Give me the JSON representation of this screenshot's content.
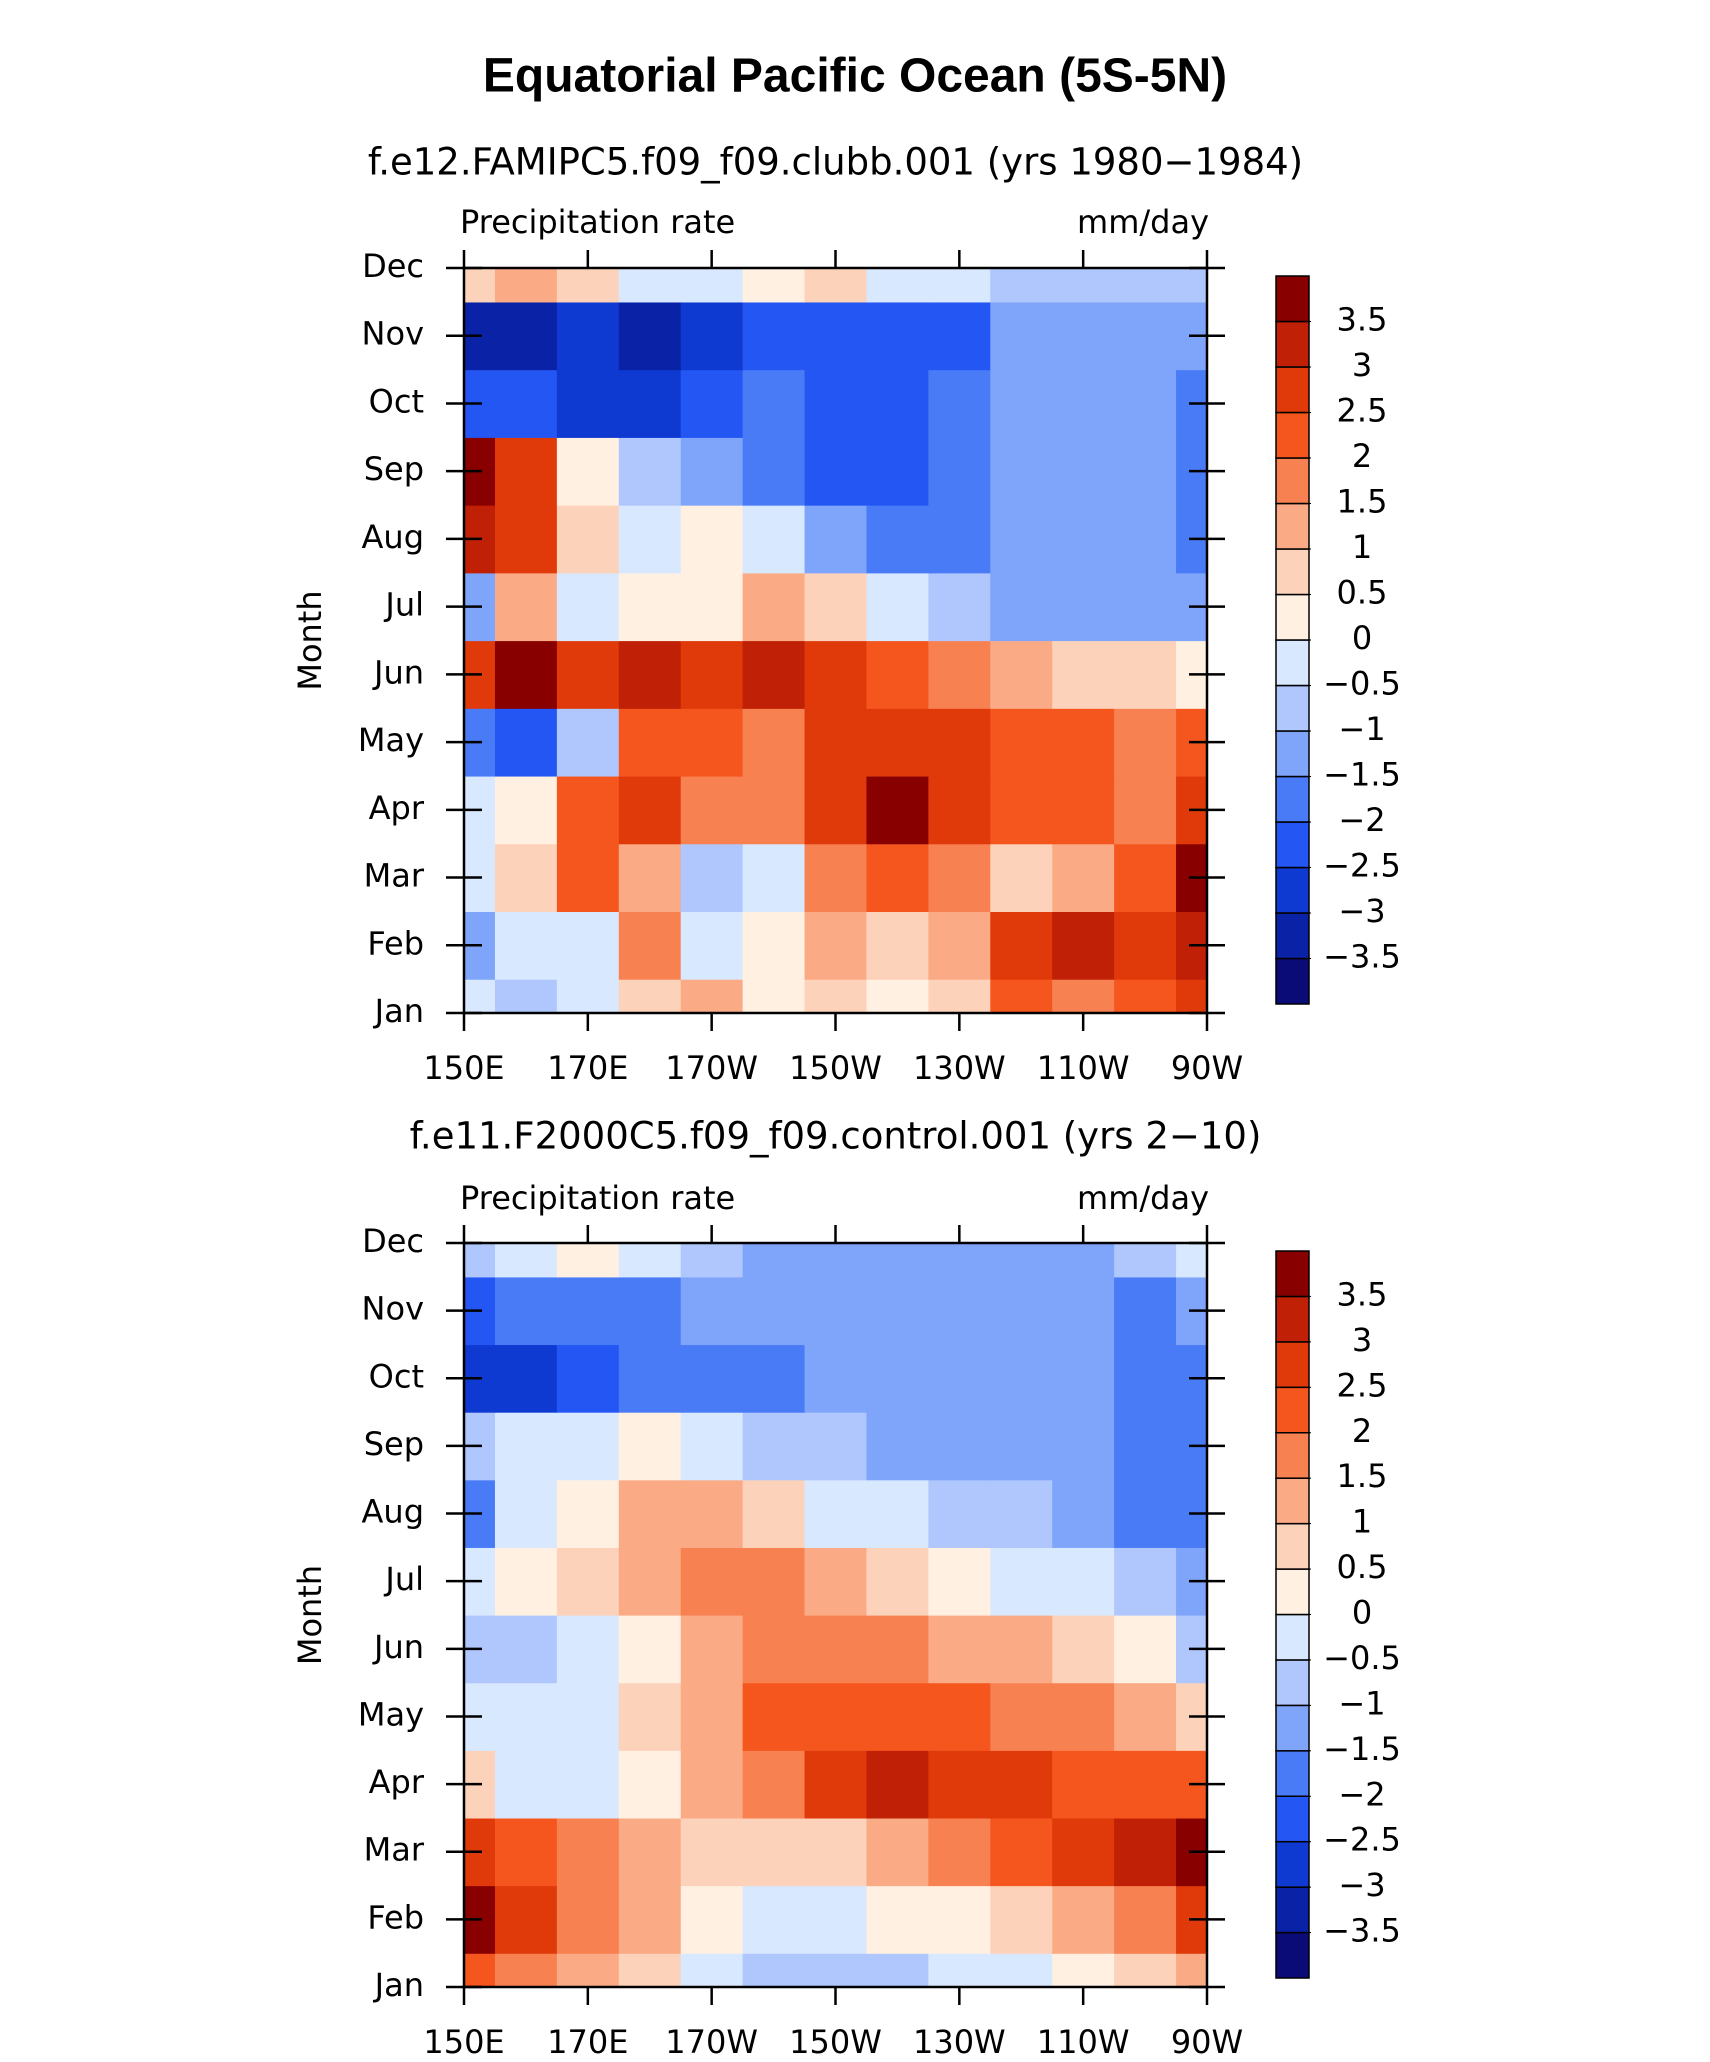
{
  "title": "Equatorial Pacific Ocean (5S-5N)",
  "chart_data": [
    {
      "type": "heatmap",
      "subtitle": "f.e12.FAMIPC5.f09_f09.clubb.001 (yrs 1980−1984)",
      "left_label": "Precipitation rate",
      "right_label": "mm/day",
      "ylabel": "Month",
      "categories": [
        "Jan",
        "Feb",
        "Mar",
        "Apr",
        "May",
        "Jun",
        "Jul",
        "Aug",
        "Sep",
        "Oct",
        "Nov",
        "Dec"
      ],
      "x": [
        150,
        160,
        170,
        180,
        190,
        200,
        210,
        220,
        230,
        240,
        250,
        260,
        270
      ],
      "xlim": [
        150,
        270
      ],
      "xticks": [
        {
          "value": 150,
          "label": "150E"
        },
        {
          "value": 170,
          "label": "170E"
        },
        {
          "value": 190,
          "label": "170W"
        },
        {
          "value": 210,
          "label": "150W"
        },
        {
          "value": 230,
          "label": "130W"
        },
        {
          "value": 250,
          "label": "110W"
        },
        {
          "value": 270,
          "label": "90W"
        }
      ],
      "z": [
        [
          -0.5,
          -1,
          -0.5,
          0.5,
          1,
          0,
          0.5,
          0,
          0.5,
          2,
          1.5,
          2,
          2.5
        ],
        [
          -1.5,
          -0.5,
          -0.5,
          1.5,
          -0.5,
          0,
          1,
          0.5,
          1,
          2.5,
          3,
          2.5,
          3
        ],
        [
          -0.5,
          0.5,
          2,
          1,
          -1,
          -0.5,
          1.5,
          2,
          1.5,
          0.5,
          1,
          2,
          3.5
        ],
        [
          -0.5,
          0,
          2,
          2.5,
          1.5,
          1.5,
          2.5,
          3.5,
          2.5,
          2,
          2,
          1.5,
          2.5
        ],
        [
          -2,
          -2.5,
          -1,
          2,
          2,
          1.5,
          2.5,
          2.5,
          2.5,
          2,
          2,
          1.5,
          2
        ],
        [
          2.5,
          3.5,
          2.5,
          3,
          2.5,
          3,
          2.5,
          2,
          1.5,
          1,
          0.5,
          0.5,
          0
        ],
        [
          -1.5,
          1,
          -0.5,
          0,
          0,
          1,
          0.5,
          -0.5,
          -1,
          -1.5,
          -1.5,
          -1.5,
          -1.5
        ],
        [
          3,
          2.5,
          0.5,
          -0.5,
          0,
          -0.5,
          -1.5,
          -2,
          -2,
          -1.5,
          -1.5,
          -1.5,
          -2
        ],
        [
          3.5,
          2.5,
          0,
          -1,
          -1.5,
          -2,
          -2.5,
          -2.5,
          -2,
          -1.5,
          -1.5,
          -1.5,
          -2
        ],
        [
          -2.5,
          -2.5,
          -3,
          -3,
          -2.5,
          -2,
          -2.5,
          -2.5,
          -2,
          -1.5,
          -1.5,
          -1.5,
          -2
        ],
        [
          -3.5,
          -3.5,
          -3,
          -3.5,
          -3,
          -2.5,
          -2.5,
          -2.5,
          -2.5,
          -1.5,
          -1.5,
          -1.5,
          -1.5
        ],
        [
          0.5,
          1,
          0.5,
          -0.5,
          -0.5,
          0,
          0.5,
          -0.5,
          -0.5,
          -1,
          -1,
          -1,
          -1
        ]
      ],
      "levels": [
        {
          "value": -3.5,
          "label": "−3.5"
        },
        {
          "value": -3,
          "label": "−3"
        },
        {
          "value": -2.5,
          "label": "−2.5"
        },
        {
          "value": -2,
          "label": "−2"
        },
        {
          "value": -1.5,
          "label": "−1.5"
        },
        {
          "value": -1,
          "label": "−1"
        },
        {
          "value": -0.5,
          "label": "−0.5"
        },
        0,
        0.5,
        1,
        1.5,
        2,
        2.5,
        3,
        3.5
      ],
      "colors": [
        "#0b0b78",
        "#0a22a6",
        "#0f3ad2",
        "#2456f4",
        "#4a7bf7",
        "#7fa5fa",
        "#afc7fc",
        "#d8e8fe",
        "#fff0e2",
        "#fdd2ba",
        "#fbaa86",
        "#f88152",
        "#f5561e",
        "#e03a0a",
        "#bf2006",
        "#880000"
      ]
    },
    {
      "type": "heatmap",
      "subtitle": "f.e11.F2000C5.f09_f09.control.001 (yrs 2−10)",
      "left_label": "Precipitation rate",
      "right_label": "mm/day",
      "ylabel": "Month",
      "categories": [
        "Jan",
        "Feb",
        "Mar",
        "Apr",
        "May",
        "Jun",
        "Jul",
        "Aug",
        "Sep",
        "Oct",
        "Nov",
        "Dec"
      ],
      "x": [
        150,
        160,
        170,
        180,
        190,
        200,
        210,
        220,
        230,
        240,
        250,
        260,
        270
      ],
      "xlim": [
        150,
        270
      ],
      "xticks": [
        {
          "value": 150,
          "label": "150E"
        },
        {
          "value": 170,
          "label": "170E"
        },
        {
          "value": 190,
          "label": "170W"
        },
        {
          "value": 210,
          "label": "150W"
        },
        {
          "value": 230,
          "label": "130W"
        },
        {
          "value": 250,
          "label": "110W"
        },
        {
          "value": 270,
          "label": "90W"
        }
      ],
      "z": [
        [
          2,
          1.5,
          1,
          0.5,
          -0.5,
          -1,
          -1,
          -1,
          -0.5,
          -0.5,
          0,
          0.5,
          1
        ],
        [
          3.5,
          2.5,
          1.5,
          1,
          0,
          -0.5,
          -0.5,
          0,
          0,
          0.5,
          1,
          1.5,
          2.5
        ],
        [
          2.5,
          2,
          1.5,
          1,
          0.5,
          0.5,
          0.5,
          1,
          1.5,
          2,
          2.5,
          3,
          3.5
        ],
        [
          0.5,
          -0.5,
          -0.5,
          0,
          1,
          1.5,
          2.5,
          3,
          2.5,
          2.5,
          2,
          2,
          2
        ],
        [
          -0.5,
          -0.5,
          -0.5,
          0.5,
          1,
          2,
          2,
          2,
          2,
          1.5,
          1.5,
          1,
          0.5
        ],
        [
          -1,
          -1,
          -0.5,
          0,
          1,
          1.5,
          1.5,
          1.5,
          1,
          1,
          0.5,
          0,
          -1
        ],
        [
          -0.5,
          0,
          0.5,
          1,
          1.5,
          1.5,
          1,
          0.5,
          0,
          -0.5,
          -0.5,
          -1,
          -1.5
        ],
        [
          -2,
          -0.5,
          0,
          1,
          1,
          0.5,
          -0.5,
          -0.5,
          -1,
          -1,
          -1.5,
          -2,
          -2
        ],
        [
          -1,
          -0.5,
          -0.5,
          0,
          -0.5,
          -1,
          -1,
          -1.5,
          -1.5,
          -1.5,
          -1.5,
          -2,
          -2
        ],
        [
          -3,
          -3,
          -2.5,
          -2,
          -2,
          -2,
          -1.5,
          -1.5,
          -1.5,
          -1.5,
          -1.5,
          -2,
          -2
        ],
        [
          -2.5,
          -2,
          -2,
          -2,
          -1.5,
          -1.5,
          -1.5,
          -1.5,
          -1.5,
          -1.5,
          -1.5,
          -2,
          -1.5
        ],
        [
          -1,
          -0.5,
          0,
          -0.5,
          -1,
          -1.5,
          -1.5,
          -1.5,
          -1.5,
          -1.5,
          -1.5,
          -1,
          -0.5
        ]
      ],
      "levels": [
        {
          "value": -3.5,
          "label": "−3.5"
        },
        {
          "value": -3,
          "label": "−3"
        },
        {
          "value": -2.5,
          "label": "−2.5"
        },
        {
          "value": -2,
          "label": "−2"
        },
        {
          "value": -1.5,
          "label": "−1.5"
        },
        {
          "value": -1,
          "label": "−1"
        },
        {
          "value": -0.5,
          "label": "−0.5"
        },
        0,
        0.5,
        1,
        1.5,
        2,
        2.5,
        3,
        3.5
      ],
      "colors": [
        "#0b0b78",
        "#0a22a6",
        "#0f3ad2",
        "#2456f4",
        "#4a7bf7",
        "#7fa5fa",
        "#afc7fc",
        "#d8e8fe",
        "#fff0e2",
        "#fdd2ba",
        "#fbaa86",
        "#f88152",
        "#f5561e",
        "#e03a0a",
        "#bf2006",
        "#880000"
      ]
    }
  ]
}
